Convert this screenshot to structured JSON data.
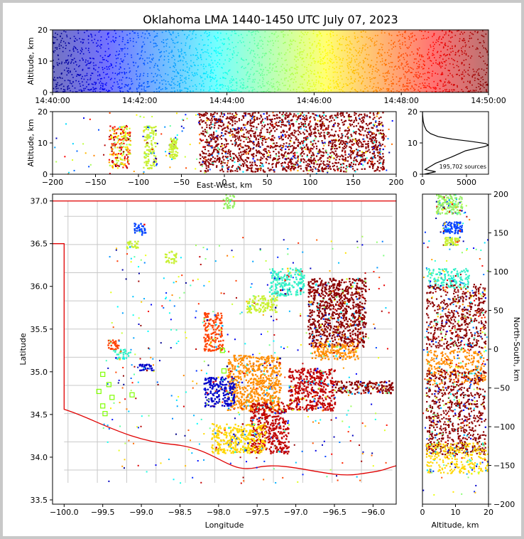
{
  "chart_data": [
    {
      "panel": "time-altitude",
      "type": "scatter",
      "title": "Oklahoma LMA 1440-1450 UTC July 07, 2023",
      "ylabel": "Altitude, km",
      "xlim": [
        "14:40:00",
        "14:50:00"
      ],
      "ylim": [
        0,
        20
      ],
      "x_ticks": [
        "14:40:00",
        "14:42:00",
        "14:44:00",
        "14:46:00",
        "14:48:00",
        "14:50:00"
      ],
      "y_ticks": [
        "0",
        "10",
        "20"
      ],
      "color_by": "time",
      "colormap": "jet"
    },
    {
      "panel": "east-west-altitude",
      "type": "scatter",
      "xlabel": "East-West, km",
      "ylabel": "Altitude, km",
      "xlim": [
        -200,
        200
      ],
      "ylim": [
        0,
        20
      ],
      "x_ticks": [
        "−200",
        "−150",
        "−100",
        "−50",
        "0",
        "50",
        "100",
        "150",
        "200"
      ],
      "y_ticks": [
        "0",
        "10",
        "20"
      ],
      "clusters_x_km": [
        {
          "x": [
            -135,
            -110
          ],
          "z": [
            2,
            16
          ],
          "color": "mixed"
        },
        {
          "x": [
            -95,
            -80
          ],
          "z": [
            2,
            16
          ],
          "color": "#c8f032"
        },
        {
          "x": [
            -65,
            -55
          ],
          "z": [
            5,
            12
          ],
          "color": "#c8f032"
        },
        {
          "x": [
            -30,
            75
          ],
          "z": [
            1,
            20
          ],
          "color": "#8b0000"
        },
        {
          "x": [
            75,
            185
          ],
          "z": [
            1,
            20
          ],
          "color": "#8b0000"
        }
      ]
    },
    {
      "panel": "altitude-histogram",
      "type": "line",
      "annotation": "195,702 sources",
      "xlim": [
        0,
        7500
      ],
      "ylim": [
        0,
        20
      ],
      "x_ticks": [
        "0",
        "5000"
      ],
      "y_ticks": [
        "0",
        "10",
        "20"
      ],
      "profile": [
        {
          "alt": 0.0,
          "count": 200
        },
        {
          "alt": 0.8,
          "count": 1500
        },
        {
          "alt": 1.5,
          "count": 300
        },
        {
          "alt": 2.5,
          "count": 900
        },
        {
          "alt": 3.5,
          "count": 1500
        },
        {
          "alt": 4.5,
          "count": 2400
        },
        {
          "alt": 5.5,
          "count": 3300
        },
        {
          "alt": 6.5,
          "count": 4100
        },
        {
          "alt": 7.5,
          "count": 4900
        },
        {
          "alt": 8.2,
          "count": 6000
        },
        {
          "alt": 8.8,
          "count": 7000
        },
        {
          "alt": 9.3,
          "count": 7500
        },
        {
          "alt": 9.8,
          "count": 7200
        },
        {
          "alt": 10.5,
          "count": 5500
        },
        {
          "alt": 11.2,
          "count": 3400
        },
        {
          "alt": 12.0,
          "count": 1800
        },
        {
          "alt": 13.0,
          "count": 900
        },
        {
          "alt": 14.0,
          "count": 450
        },
        {
          "alt": 15.5,
          "count": 200
        },
        {
          "alt": 17.0,
          "count": 80
        },
        {
          "alt": 19.0,
          "count": 20
        },
        {
          "alt": 20.0,
          "count": 5
        }
      ]
    },
    {
      "panel": "plan-view",
      "type": "scatter",
      "xlabel": "Longitude",
      "ylabel": "Latitude",
      "xlim": [
        -100.15,
        -95.7
      ],
      "ylim": [
        33.45,
        37.08
      ],
      "x_ticks": [
        "−100.0",
        "−99.5",
        "−99.0",
        "−98.5",
        "−98.0",
        "−97.5",
        "−97.0",
        "−96.5",
        "−96.0"
      ],
      "y_ticks": [
        "33.5",
        "34.0",
        "34.5",
        "35.0",
        "35.5",
        "36.0",
        "36.5",
        "37.0"
      ],
      "clusters": [
        {
          "lon": [
            -97.95,
            -97.8
          ],
          "lat": [
            36.92,
            37.08
          ],
          "color": "#96f064"
        },
        {
          "lon": [
            -99.1,
            -98.95
          ],
          "lat": [
            36.6,
            36.75
          ],
          "color": "#0040ff"
        },
        {
          "lon": [
            -99.2,
            -99.05
          ],
          "lat": [
            36.45,
            36.55
          ],
          "color": "#c8f032"
        },
        {
          "lon": [
            -98.7,
            -98.55
          ],
          "lat": [
            36.28,
            36.42
          ],
          "color": "#c8f032"
        },
        {
          "lon": [
            -97.35,
            -96.9
          ],
          "lat": [
            35.9,
            36.22
          ],
          "color": "#32f0c8"
        },
        {
          "lon": [
            -97.65,
            -97.25
          ],
          "lat": [
            35.7,
            35.9
          ],
          "color": "#c8f032"
        },
        {
          "lon": [
            -96.85,
            -96.1
          ],
          "lat": [
            35.3,
            36.1
          ],
          "color": "#8b0000"
        },
        {
          "lon": [
            -96.8,
            -96.2
          ],
          "lat": [
            35.15,
            35.35
          ],
          "color": "#ff8c00"
        },
        {
          "lon": [
            -98.2,
            -97.95
          ],
          "lat": [
            35.25,
            35.7
          ],
          "color": "#ff4000"
        },
        {
          "lon": [
            -97.9,
            -97.2
          ],
          "lat": [
            34.55,
            35.2
          ],
          "color": "#ff8c00"
        },
        {
          "lon": [
            -97.6,
            -97.1
          ],
          "lat": [
            34.05,
            34.65
          ],
          "color": "#c00000"
        },
        {
          "lon": [
            -97.1,
            -96.5
          ],
          "lat": [
            34.55,
            35.05
          ],
          "color": "#c00000"
        },
        {
          "lon": [
            -96.5,
            -95.75
          ],
          "lat": [
            34.75,
            34.9
          ],
          "color": "#8b0000"
        },
        {
          "lon": [
            -98.1,
            -97.4
          ],
          "lat": [
            34.05,
            34.4
          ],
          "color": "#ffd700"
        },
        {
          "lon": [
            -98.2,
            -97.8
          ],
          "lat": [
            34.6,
            34.95
          ],
          "color": "#0000c8"
        },
        {
          "lon": [
            -99.45,
            -99.3
          ],
          "lat": [
            35.27,
            35.38
          ],
          "color": "#ff4000"
        },
        {
          "lon": [
            -99.35,
            -99.15
          ],
          "lat": [
            35.15,
            35.27
          ],
          "color": "#32f0c8"
        },
        {
          "lon": [
            -99.05,
            -98.85
          ],
          "lat": [
            35.02,
            35.1
          ],
          "color": "#0000c8"
        }
      ],
      "stations": [
        [
          -99.5,
          34.97
        ],
        [
          -99.42,
          34.85
        ],
        [
          -99.55,
          34.77
        ],
        [
          -99.38,
          34.7
        ],
        [
          -99.5,
          34.6
        ],
        [
          -99.47,
          34.51
        ],
        [
          -99.12,
          34.73
        ],
        [
          -97.93,
          35.01
        ],
        [
          -97.95,
          35.25
        ]
      ]
    },
    {
      "panel": "altitude-north-south",
      "type": "scatter",
      "xlabel": "Altitude, km",
      "ylabel": "North-South, km",
      "xlim": [
        0,
        20
      ],
      "ylim": [
        -200,
        200
      ],
      "x_ticks": [
        "0",
        "10",
        "20"
      ],
      "y_ticks": [
        "−200",
        "−150",
        "−100",
        "−50",
        "0",
        "50",
        "100",
        "150",
        "200"
      ],
      "clusters_y_km": [
        {
          "y": [
            175,
            200
          ],
          "z": [
            4,
            12
          ],
          "color": "#96f064"
        },
        {
          "y": [
            150,
            165
          ],
          "z": [
            6,
            12
          ],
          "color": "#0040ff"
        },
        {
          "y": [
            135,
            145
          ],
          "z": [
            6,
            11
          ],
          "color": "#c8f032"
        },
        {
          "y": [
            80,
            105
          ],
          "z": [
            1,
            14
          ],
          "color": "#32f0c8"
        },
        {
          "y": [
            0,
            85
          ],
          "z": [
            1,
            19
          ],
          "color": "#8b0000"
        },
        {
          "y": [
            -45,
            0
          ],
          "z": [
            1,
            19
          ],
          "color": "#ff8c00"
        },
        {
          "y": [
            -135,
            -25
          ],
          "z": [
            1,
            19
          ],
          "color": "#8b0000"
        },
        {
          "y": [
            -160,
            -120
          ],
          "z": [
            1,
            20
          ],
          "color": "#ffd700"
        }
      ]
    }
  ]
}
